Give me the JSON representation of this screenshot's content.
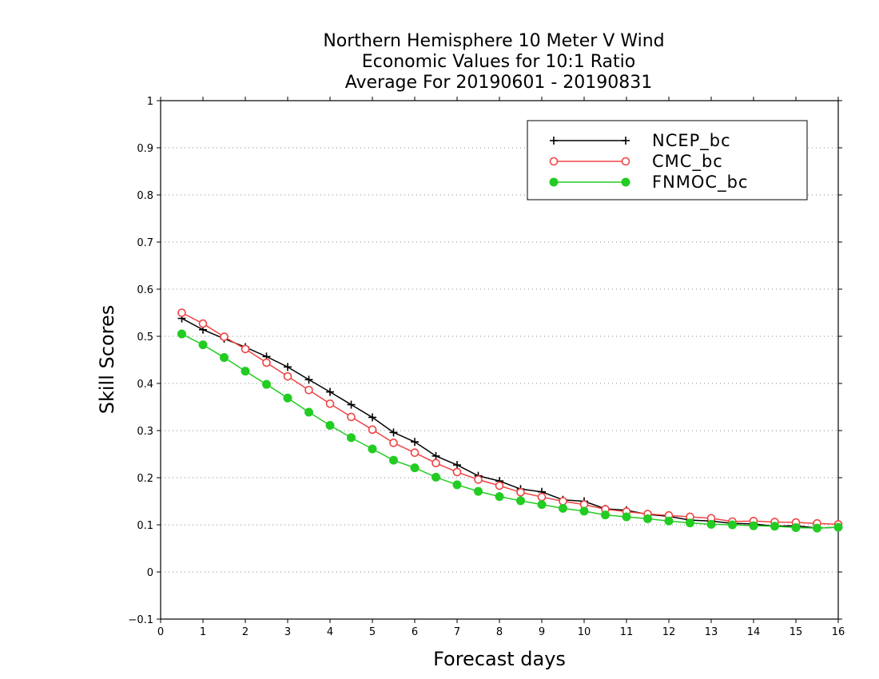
{
  "chart_data": {
    "type": "line",
    "title": [
      "Northern Hemisphere 10 Meter V Wind",
      "Economic Values for 10:1 Ratio",
      "Average For 20190601 - 20190831"
    ],
    "xlabel": "Forecast days",
    "ylabel": "Skill Scores",
    "xlim": [
      0,
      16
    ],
    "ylim": [
      -0.1,
      1
    ],
    "xticks": [
      0,
      1,
      2,
      3,
      4,
      5,
      6,
      7,
      8,
      9,
      10,
      11,
      12,
      13,
      14,
      15,
      16
    ],
    "xtick_labels": [
      "0",
      "1",
      "2",
      "3",
      "4",
      "5",
      "6",
      "7",
      "8",
      "9",
      "10",
      "11",
      "12",
      "13",
      "14",
      "15",
      "16"
    ],
    "yticks": [
      -0.1,
      0,
      0.1,
      0.2,
      0.3,
      0.4,
      0.5,
      0.6,
      0.7,
      0.8,
      0.9,
      1
    ],
    "ytick_labels": [
      "−0.1",
      "0",
      "0.1",
      "0.2",
      "0.3",
      "0.4",
      "0.5",
      "0.6",
      "0.7",
      "0.8",
      "0.9",
      "1"
    ],
    "grid": "horizontal-dotted",
    "legend_position": "top-right",
    "x": [
      0.5,
      1,
      1.5,
      2,
      2.5,
      3,
      3.5,
      4,
      4.5,
      5,
      5.5,
      6,
      6.5,
      7,
      7.5,
      8,
      8.5,
      9,
      9.5,
      10,
      10.5,
      11,
      11.5,
      12,
      12.5,
      13,
      13.5,
      14,
      14.5,
      15,
      15.5,
      16
    ],
    "series": [
      {
        "name": "NCEP_bc",
        "color": "#000000",
        "marker": "plus",
        "values": [
          0.538,
          0.514,
          0.495,
          0.477,
          0.457,
          0.435,
          0.408,
          0.382,
          0.355,
          0.328,
          0.296,
          0.276,
          0.246,
          0.227,
          0.204,
          0.193,
          0.176,
          0.17,
          0.153,
          0.15,
          0.134,
          0.131,
          0.122,
          0.118,
          0.11,
          0.108,
          0.103,
          0.102,
          0.097,
          0.098,
          0.093,
          0.095
        ]
      },
      {
        "name": "CMC_bc",
        "color": "#ee4444",
        "marker": "open-circle",
        "values": [
          0.55,
          0.527,
          0.499,
          0.473,
          0.444,
          0.415,
          0.386,
          0.357,
          0.329,
          0.302,
          0.274,
          0.253,
          0.231,
          0.212,
          0.196,
          0.183,
          0.169,
          0.159,
          0.15,
          0.143,
          0.133,
          0.128,
          0.123,
          0.12,
          0.117,
          0.114,
          0.107,
          0.108,
          0.106,
          0.105,
          0.103,
          0.101
        ]
      },
      {
        "name": "FNMOC_bc",
        "color": "#22cc22",
        "marker": "filled-circle",
        "values": [
          0.505,
          0.482,
          0.455,
          0.426,
          0.398,
          0.369,
          0.339,
          0.311,
          0.285,
          0.261,
          0.237,
          0.221,
          0.201,
          0.185,
          0.171,
          0.16,
          0.151,
          0.143,
          0.135,
          0.129,
          0.121,
          0.117,
          0.113,
          0.108,
          0.104,
          0.101,
          0.1,
          0.098,
          0.097,
          0.094,
          0.093,
          0.095
        ]
      }
    ]
  }
}
